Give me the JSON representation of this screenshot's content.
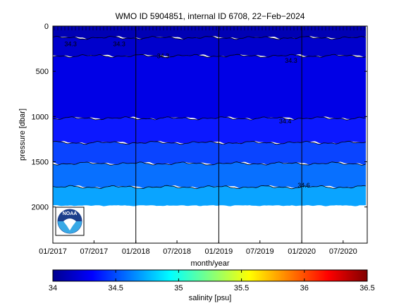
{
  "chart_data": {
    "type": "heatmap",
    "title": "WMO ID 5904851, internal ID 6708, 22−Feb−2024",
    "xlabel": "month/year",
    "ylabel": "pressure [dbar]",
    "xlim": [
      "2017-01-01",
      "2020-10-15"
    ],
    "ylim": [
      0,
      2400
    ],
    "y_reversed": true,
    "x_ticks": [
      {
        "date": "2017-01-01",
        "label": "01/2017"
      },
      {
        "date": "2017-07-01",
        "label": "07/2017"
      },
      {
        "date": "2018-01-01",
        "label": "01/2018"
      },
      {
        "date": "2018-07-01",
        "label": "07/2018"
      },
      {
        "date": "2019-01-01",
        "label": "01/2019"
      },
      {
        "date": "2019-07-01",
        "label": "07/2019"
      },
      {
        "date": "2020-01-01",
        "label": "01/2020"
      },
      {
        "date": "2020-07-01",
        "label": "07/2020"
      }
    ],
    "y_ticks": [
      {
        "value": 0,
        "label": "0"
      },
      {
        "value": 500,
        "label": "500"
      },
      {
        "value": 1000,
        "label": "1000"
      },
      {
        "value": 1500,
        "label": "1500"
      },
      {
        "value": 2000,
        "label": "2000"
      }
    ],
    "year_boundaries": [
      "2018-01-01",
      "2019-01-01",
      "2020-01-01"
    ],
    "max_profile_pressure": 1980,
    "contour_levels": [
      34.2,
      34.3,
      34.4,
      34.5,
      34.6
    ],
    "contour_bands": [
      {
        "salinity": 34.05,
        "from": 0,
        "to": 130,
        "color": "#0000b4"
      },
      {
        "salinity": 34.15,
        "from": 130,
        "to": 330,
        "color": "#0000cc"
      },
      {
        "salinity": 34.25,
        "from": 330,
        "to": 1020,
        "color": "#0000e6"
      },
      {
        "salinity": 34.35,
        "from": 1020,
        "to": 1290,
        "color": "#0c18ff"
      },
      {
        "salinity": 34.45,
        "from": 1290,
        "to": 1520,
        "color": "#0a44ff"
      },
      {
        "salinity": 34.55,
        "from": 1520,
        "to": 1780,
        "color": "#0870ff"
      },
      {
        "salinity": 34.65,
        "from": 1780,
        "to": 1980,
        "color": "#0aa4ff"
      }
    ],
    "contour_labels": [
      {
        "text": "34.3",
        "date": "2017-03-20",
        "pressure": 200
      },
      {
        "text": "34.3",
        "date": "2017-10-20",
        "pressure": 200
      },
      {
        "text": "34.3",
        "date": "2018-05-01",
        "pressure": 330
      },
      {
        "text": "34.3",
        "date": "2019-11-15",
        "pressure": 380
      },
      {
        "text": "34.4",
        "date": "2019-10-20",
        "pressure": 1050
      },
      {
        "text": "34.6",
        "date": "2020-01-10",
        "pressure": 1760
      }
    ],
    "colorbar": {
      "label": "salinity [psu]",
      "min": 34,
      "max": 36.5,
      "ticks": [
        "34",
        "34.5",
        "35",
        "35.5",
        "36",
        "36.5"
      ]
    },
    "logo": {
      "text": "NOAA",
      "icon": "noaa-logo-icon"
    }
  }
}
